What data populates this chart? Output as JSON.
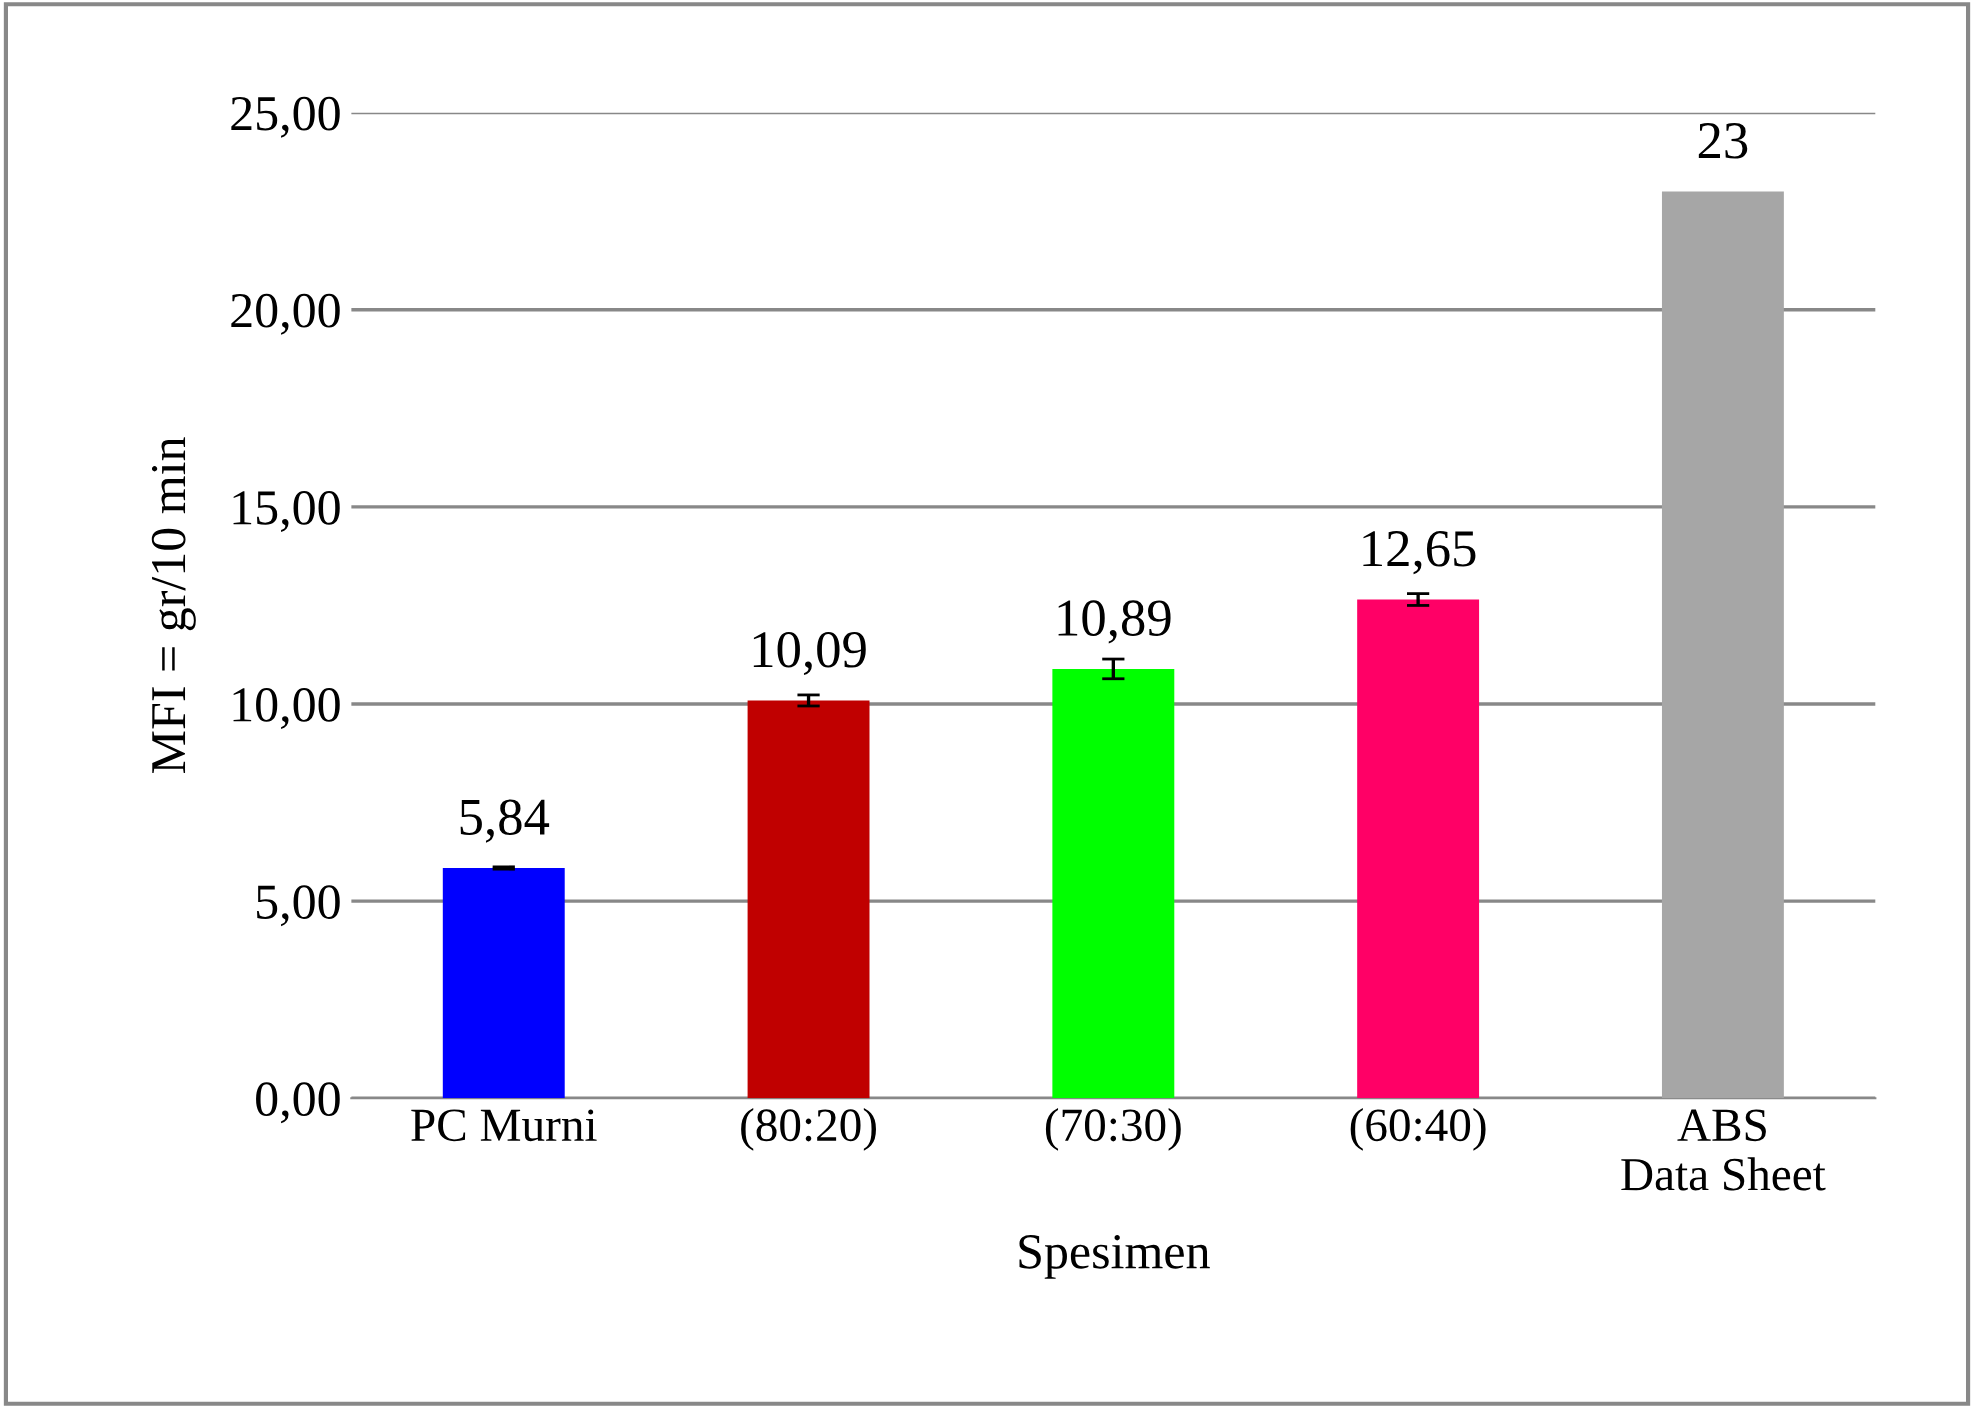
{
  "chart_data": {
    "type": "bar",
    "xlabel": "Spesimen",
    "ylabel": "MFI = gr/10 min",
    "categories": [
      "PC Murni",
      "(80:20)",
      "(70:30)",
      "(60:40)",
      "ABS\nData Sheet"
    ],
    "values": [
      5.84,
      10.09,
      10.89,
      12.65,
      23
    ],
    "colors": [
      "#0000ff",
      "#c00000",
      "#00ff00",
      "#ff0066",
      "#a6a6a6"
    ],
    "errors": [
      0.03,
      0.14,
      0.25,
      0.15,
      null
    ],
    "value_labels": [
      "5,84",
      "10,09",
      "10,89",
      "12,65",
      "23"
    ],
    "ylim": [
      0,
      25
    ],
    "yticks": [
      {
        "value": 0,
        "label": "0,00"
      },
      {
        "value": 5,
        "label": "5,00"
      },
      {
        "value": 10,
        "label": "10,00"
      },
      {
        "value": 15,
        "label": "15,00"
      },
      {
        "value": 20,
        "label": "20,00"
      },
      {
        "value": 25,
        "label": "25,00"
      }
    ],
    "grid": "y",
    "legend": false
  }
}
